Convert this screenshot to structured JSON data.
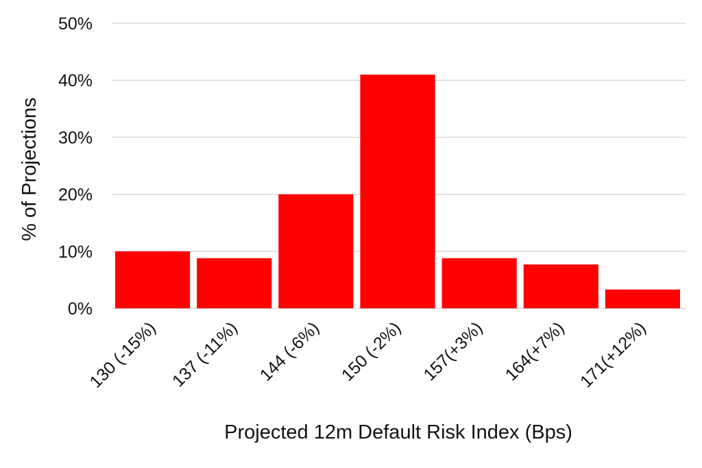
{
  "chart_data": {
    "type": "bar",
    "categories": [
      "130 (-15%)",
      "137 (-11%)",
      "144 (-6%)",
      "150 (-2%)",
      "157(+3%)",
      "164(+7%)",
      "171(+12%)"
    ],
    "values": [
      10,
      8.8,
      20,
      41,
      8.8,
      7.7,
      3.3
    ],
    "xlabel": "Projected 12m Default Risk Index (Bps)",
    "ylabel": "% of Projections",
    "ylim": [
      0,
      50
    ],
    "yticks": [
      0,
      10,
      20,
      30,
      40,
      50
    ],
    "ytick_labels": [
      "0%",
      "10%",
      "20%",
      "30%",
      "40%",
      "50%"
    ],
    "bar_color": "#ff0000",
    "grid": true,
    "legend": false
  }
}
